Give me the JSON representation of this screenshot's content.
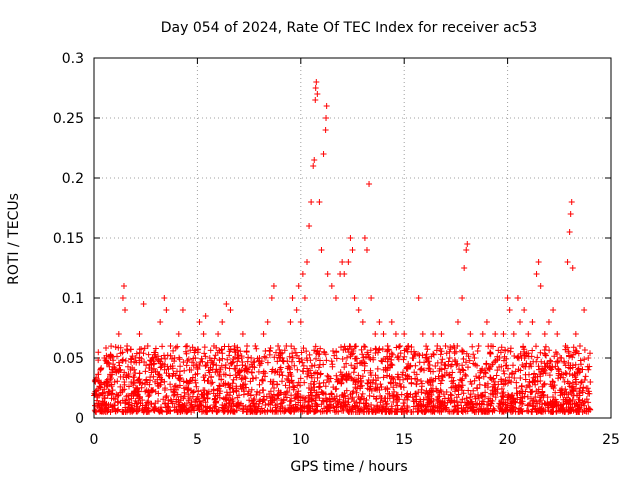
{
  "chart_data": {
    "type": "scatter",
    "title": "Day 054 of 2024, Rate Of TEC Index for receiver ac53",
    "xlabel": "GPS time / hours",
    "ylabel": "ROTI / TECUs",
    "xlim": [
      0,
      25
    ],
    "ylim": [
      0,
      0.3
    ],
    "xticks": [
      "0",
      "5",
      "10",
      "15",
      "20",
      "25"
    ],
    "yticks": [
      "0",
      "0.05",
      "0.1",
      "0.15",
      "0.2",
      "0.25",
      "0.3"
    ],
    "grid": true,
    "marker": "plus",
    "color": "#ff0000",
    "series": [
      {
        "name": "",
        "points": [
          [
            0.1,
            0.02
          ],
          [
            0.3,
            0.04
          ],
          [
            0.5,
            0.05
          ],
          [
            0.6,
            0.03
          ],
          [
            0.8,
            0.05
          ],
          [
            1.0,
            0.03
          ],
          [
            1.2,
            0.07
          ],
          [
            1.4,
            0.1
          ],
          [
            1.45,
            0.11
          ],
          [
            1.5,
            0.09
          ],
          [
            1.6,
            0.06
          ],
          [
            1.8,
            0.03
          ],
          [
            2.0,
            0.05
          ],
          [
            2.2,
            0.07
          ],
          [
            2.4,
            0.095
          ],
          [
            2.6,
            0.06
          ],
          [
            2.8,
            0.04
          ],
          [
            3.0,
            0.05
          ],
          [
            3.2,
            0.08
          ],
          [
            3.4,
            0.1
          ],
          [
            3.5,
            0.09
          ],
          [
            3.7,
            0.06
          ],
          [
            3.9,
            0.05
          ],
          [
            4.1,
            0.07
          ],
          [
            4.3,
            0.09
          ],
          [
            4.5,
            0.06
          ],
          [
            4.7,
            0.04
          ],
          [
            4.9,
            0.05
          ],
          [
            5.1,
            0.08
          ],
          [
            5.3,
            0.07
          ],
          [
            5.4,
            0.085
          ],
          [
            5.6,
            0.05
          ],
          [
            5.8,
            0.06
          ],
          [
            6.0,
            0.07
          ],
          [
            6.2,
            0.08
          ],
          [
            6.4,
            0.095
          ],
          [
            6.6,
            0.09
          ],
          [
            6.8,
            0.06
          ],
          [
            7.0,
            0.05
          ],
          [
            7.2,
            0.07
          ],
          [
            7.4,
            0.06
          ],
          [
            7.6,
            0.05
          ],
          [
            7.8,
            0.06
          ],
          [
            8.0,
            0.05
          ],
          [
            8.2,
            0.07
          ],
          [
            8.4,
            0.08
          ],
          [
            8.6,
            0.1
          ],
          [
            8.7,
            0.11
          ],
          [
            8.9,
            0.06
          ],
          [
            9.1,
            0.05
          ],
          [
            9.3,
            0.06
          ],
          [
            9.5,
            0.08
          ],
          [
            9.6,
            0.1
          ],
          [
            9.8,
            0.09
          ],
          [
            9.9,
            0.11
          ],
          [
            10.0,
            0.08
          ],
          [
            10.1,
            0.12
          ],
          [
            10.2,
            0.1
          ],
          [
            10.3,
            0.13
          ],
          [
            10.4,
            0.16
          ],
          [
            10.5,
            0.18
          ],
          [
            10.6,
            0.21
          ],
          [
            10.65,
            0.215
          ],
          [
            10.7,
            0.265
          ],
          [
            10.72,
            0.275
          ],
          [
            10.75,
            0.28
          ],
          [
            10.8,
            0.27
          ],
          [
            10.9,
            0.18
          ],
          [
            11.0,
            0.14
          ],
          [
            11.1,
            0.22
          ],
          [
            11.2,
            0.24
          ],
          [
            11.22,
            0.25
          ],
          [
            11.25,
            0.26
          ],
          [
            11.3,
            0.12
          ],
          [
            11.5,
            0.11
          ],
          [
            11.7,
            0.1
          ],
          [
            11.9,
            0.12
          ],
          [
            12.0,
            0.13
          ],
          [
            12.1,
            0.12
          ],
          [
            12.3,
            0.13
          ],
          [
            12.4,
            0.15
          ],
          [
            12.5,
            0.14
          ],
          [
            12.6,
            0.1
          ],
          [
            12.8,
            0.09
          ],
          [
            13.0,
            0.08
          ],
          [
            13.1,
            0.15
          ],
          [
            13.2,
            0.14
          ],
          [
            13.3,
            0.195
          ],
          [
            13.4,
            0.1
          ],
          [
            13.6,
            0.07
          ],
          [
            13.8,
            0.08
          ],
          [
            14.0,
            0.07
          ],
          [
            14.2,
            0.06
          ],
          [
            14.4,
            0.08
          ],
          [
            14.6,
            0.07
          ],
          [
            14.8,
            0.06
          ],
          [
            15.0,
            0.07
          ],
          [
            15.2,
            0.06
          ],
          [
            15.4,
            0.05
          ],
          [
            15.7,
            0.1
          ],
          [
            15.9,
            0.07
          ],
          [
            16.1,
            0.05
          ],
          [
            16.4,
            0.07
          ],
          [
            16.6,
            0.06
          ],
          [
            16.8,
            0.07
          ],
          [
            17.0,
            0.06
          ],
          [
            17.2,
            0.05
          ],
          [
            17.4,
            0.06
          ],
          [
            17.6,
            0.08
          ],
          [
            17.8,
            0.1
          ],
          [
            17.9,
            0.125
          ],
          [
            18.0,
            0.14
          ],
          [
            18.05,
            0.145
          ],
          [
            18.2,
            0.07
          ],
          [
            18.4,
            0.05
          ],
          [
            18.6,
            0.06
          ],
          [
            18.8,
            0.07
          ],
          [
            19.0,
            0.08
          ],
          [
            19.2,
            0.06
          ],
          [
            19.4,
            0.07
          ],
          [
            19.6,
            0.05
          ],
          [
            19.8,
            0.07
          ],
          [
            20.0,
            0.1
          ],
          [
            20.1,
            0.09
          ],
          [
            20.3,
            0.07
          ],
          [
            20.5,
            0.1
          ],
          [
            20.6,
            0.08
          ],
          [
            20.8,
            0.09
          ],
          [
            21.0,
            0.07
          ],
          [
            21.2,
            0.08
          ],
          [
            21.4,
            0.12
          ],
          [
            21.5,
            0.13
          ],
          [
            21.6,
            0.11
          ],
          [
            21.8,
            0.07
          ],
          [
            22.0,
            0.08
          ],
          [
            22.2,
            0.09
          ],
          [
            22.4,
            0.07
          ],
          [
            22.6,
            0.05
          ],
          [
            22.8,
            0.06
          ],
          [
            22.9,
            0.13
          ],
          [
            23.0,
            0.155
          ],
          [
            23.05,
            0.17
          ],
          [
            23.1,
            0.18
          ],
          [
            23.15,
            0.125
          ],
          [
            23.3,
            0.07
          ],
          [
            23.5,
            0.06
          ],
          [
            23.7,
            0.09
          ],
          [
            23.9,
            0.05
          ],
          [
            24.0,
            0.03
          ]
        ]
      }
    ]
  }
}
